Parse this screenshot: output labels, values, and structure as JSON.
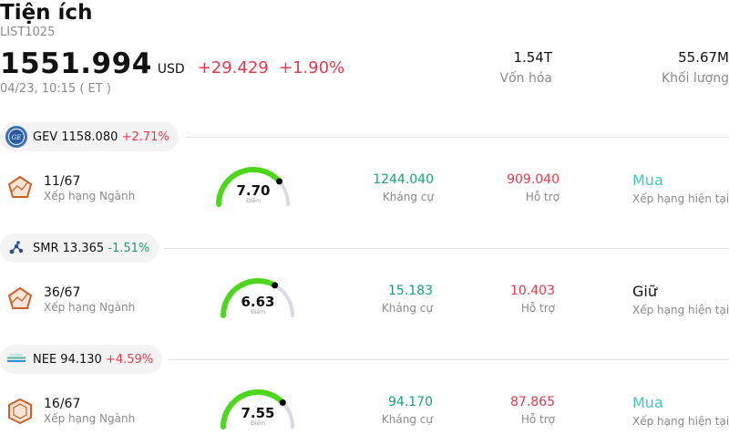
{
  "header": {
    "title": "Tiện ích",
    "code": "LIST1025",
    "price": "1551.994",
    "currency": "USD",
    "change": "+29.429",
    "change_pct": "+1.90%",
    "time": "04/23, 10:15  ( ET )",
    "market_cap_value": "1.54T",
    "market_cap_label": "Vốn hóa",
    "volume_value": "55.67M",
    "volume_label": "Khối lượng"
  },
  "colors": {
    "up": "#e8394d",
    "down": "#1a9e7a",
    "gauge_active": "#4cd61c",
    "gauge_track": "#d9d9e3",
    "rating_buy": "#3fc7bf"
  },
  "stocks": [
    {
      "ticker": "GEV",
      "price": "1158.080",
      "change": "+2.71%",
      "logo_icon": "ge-vernova-logo-icon",
      "rank": "11/67",
      "rank_label": "Xếp hạng Ngành",
      "score": "7.70",
      "score_label": "Điểm",
      "score_fraction": 0.77,
      "resistance": "1244.040",
      "resistance_label": "Kháng cự",
      "support": "909.040",
      "support_label": "Hỗ trợ",
      "rating": "Mua",
      "rating_label": "Xếp hạng hiện tại"
    },
    {
      "ticker": "SMR",
      "price": "13.365",
      "change": "-1.51%",
      "logo_icon": "nuscale-logo-icon",
      "rank": "36/67",
      "rank_label": "Xếp hạng Ngành",
      "score": "6.63",
      "score_label": "Điểm",
      "score_fraction": 0.663,
      "resistance": "15.183",
      "resistance_label": "Kháng cự",
      "support": "10.403",
      "support_label": "Hỗ trợ",
      "rating": "Giữ",
      "rating_label": "Xếp hạng hiện tại"
    },
    {
      "ticker": "NEE",
      "price": "94.130",
      "change": "+4.59%",
      "logo_icon": "nextera-logo-icon",
      "rank": "16/67",
      "rank_label": "Xếp hạng Ngành",
      "score": "7.55",
      "score_label": "Điểm",
      "score_fraction": 0.755,
      "resistance": "94.170",
      "resistance_label": "Kháng cự",
      "support": "87.865",
      "support_label": "Hỗ trợ",
      "rating": "Mua",
      "rating_label": "Xếp hạng hiện tại"
    }
  ]
}
